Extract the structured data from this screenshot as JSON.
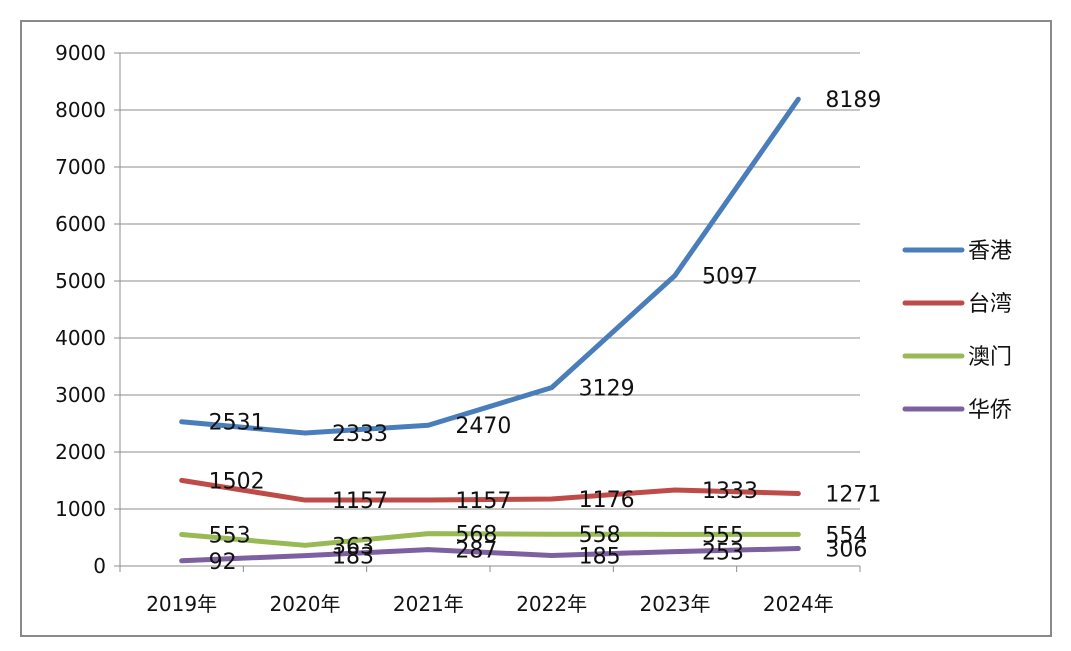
{
  "chart_data": {
    "type": "line",
    "categories": [
      "2019年",
      "2020年",
      "2021年",
      "2022年",
      "2023年",
      "2024年"
    ],
    "ylim": [
      0,
      9000
    ],
    "yticks": [
      0,
      1000,
      2000,
      3000,
      4000,
      5000,
      6000,
      7000,
      8000,
      9000
    ],
    "grid": true,
    "legend_position": "right",
    "series": [
      {
        "name": "香港",
        "color": "#4a7ebb",
        "values": [
          2531,
          2333,
          2470,
          3129,
          5097,
          8189
        ]
      },
      {
        "name": "台湾",
        "color": "#be4b48",
        "values": [
          1502,
          1157,
          1157,
          1176,
          1333,
          1271
        ]
      },
      {
        "name": "澳门",
        "color": "#98b954",
        "values": [
          553,
          363,
          568,
          558,
          555,
          554
        ]
      },
      {
        "name": "华侨",
        "color": "#7d60a0",
        "values": [
          92,
          183,
          287,
          185,
          253,
          306
        ]
      }
    ]
  }
}
